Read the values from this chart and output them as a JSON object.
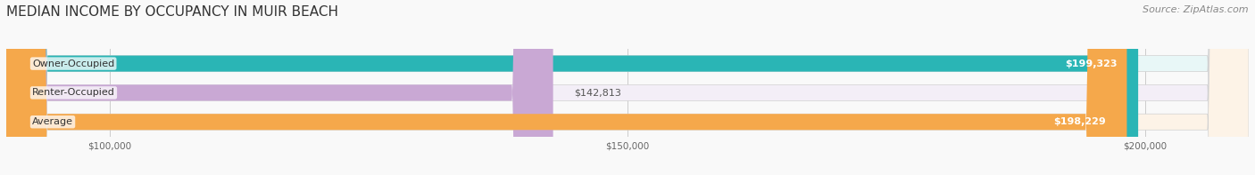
{
  "title": "MEDIAN INCOME BY OCCUPANCY IN MUIR BEACH",
  "source": "Source: ZipAtlas.com",
  "categories": [
    "Owner-Occupied",
    "Renter-Occupied",
    "Average"
  ],
  "values": [
    199323,
    142813,
    198229
  ],
  "bar_colors": [
    "#2ab5b5",
    "#c9a8d4",
    "#f5a84b"
  ],
  "bar_bg_colors": [
    "#e8f7f7",
    "#f3eef7",
    "#fdf3e7"
  ],
  "value_labels": [
    "$199,323",
    "$142,813",
    "$198,229"
  ],
  "xmin": 90000,
  "xmax": 210000,
  "xticks": [
    100000,
    150000,
    200000
  ],
  "xtick_labels": [
    "$100,000",
    "$150,000",
    "$200,000"
  ],
  "title_fontsize": 11,
  "source_fontsize": 8,
  "label_fontsize": 8,
  "value_fontsize": 8,
  "background_color": "#f9f9f9"
}
